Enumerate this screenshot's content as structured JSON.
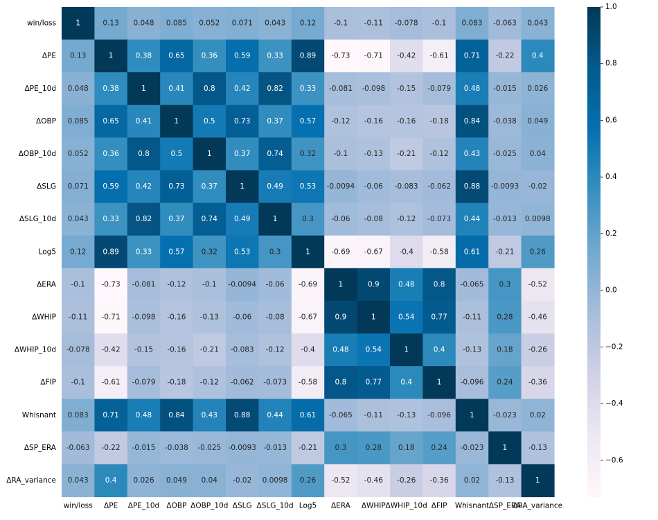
{
  "chart_data": {
    "type": "heatmap",
    "title": "",
    "xlabel": "",
    "ylabel": "",
    "row_labels": [
      "win/loss",
      "ΔPE",
      "ΔPE_10d",
      "ΔOBP",
      "ΔOBP_10d",
      "ΔSLG",
      "ΔSLG_10d",
      "Log5",
      "ΔERA",
      "ΔWHIP",
      "ΔWHIP_10d",
      "ΔFIP",
      "Whisnant",
      "ΔSP_ERA",
      "ΔRA_variance"
    ],
    "column_labels": [
      "win/loss",
      "ΔPE",
      "ΔPE_10d",
      "ΔOBP",
      "ΔOBP_10d",
      "ΔSLG",
      "ΔSLG_10d",
      "Log5",
      "ΔERA",
      "ΔWHIP",
      "ΔWHIP_10d",
      "ΔFIP",
      "Whisnant",
      "ΔSP_ERA",
      "ΔRA_variance"
    ],
    "values": [
      [
        "1",
        "0.13",
        "0.048",
        "0.085",
        "0.052",
        "0.071",
        "0.043",
        "0.12",
        "-0.1",
        "-0.11",
        "-0.078",
        "-0.1",
        "0.083",
        "-0.063",
        "0.043"
      ],
      [
        "0.13",
        "1",
        "0.38",
        "0.65",
        "0.36",
        "0.59",
        "0.33",
        "0.89",
        "-0.73",
        "-0.71",
        "-0.42",
        "-0.61",
        "0.71",
        "-0.22",
        "0.4"
      ],
      [
        "0.048",
        "0.38",
        "1",
        "0.41",
        "0.8",
        "0.42",
        "0.82",
        "0.33",
        "-0.081",
        "-0.098",
        "-0.15",
        "-0.079",
        "0.48",
        "-0.015",
        "0.026"
      ],
      [
        "0.085",
        "0.65",
        "0.41",
        "1",
        "0.5",
        "0.73",
        "0.37",
        "0.57",
        "-0.12",
        "-0.16",
        "-0.16",
        "-0.18",
        "0.84",
        "-0.038",
        "0.049"
      ],
      [
        "0.052",
        "0.36",
        "0.8",
        "0.5",
        "1",
        "0.37",
        "0.74",
        "0.32",
        "-0.1",
        "-0.13",
        "-0.21",
        "-0.12",
        "0.43",
        "-0.025",
        "0.04"
      ],
      [
        "0.071",
        "0.59",
        "0.42",
        "0.73",
        "0.37",
        "1",
        "0.49",
        "0.53",
        "-0.0094",
        "-0.06",
        "-0.083",
        "-0.062",
        "0.88",
        "-0.0093",
        "-0.02"
      ],
      [
        "0.043",
        "0.33",
        "0.82",
        "0.37",
        "0.74",
        "0.49",
        "1",
        "0.3",
        "-0.06",
        "-0.08",
        "-0.12",
        "-0.073",
        "0.44",
        "-0.013",
        "0.0098"
      ],
      [
        "0.12",
        "0.89",
        "0.33",
        "0.57",
        "0.32",
        "0.53",
        "0.3",
        "1",
        "-0.69",
        "-0.67",
        "-0.4",
        "-0.58",
        "0.61",
        "-0.21",
        "0.26"
      ],
      [
        "-0.1",
        "-0.73",
        "-0.081",
        "-0.12",
        "-0.1",
        "-0.0094",
        "-0.06",
        "-0.69",
        "1",
        "0.9",
        "0.48",
        "0.8",
        "-0.065",
        "0.3",
        "-0.52"
      ],
      [
        "-0.11",
        "-0.71",
        "-0.098",
        "-0.16",
        "-0.13",
        "-0.06",
        "-0.08",
        "-0.67",
        "0.9",
        "1",
        "0.54",
        "0.77",
        "-0.11",
        "0.28",
        "-0.46"
      ],
      [
        "-0.078",
        "-0.42",
        "-0.15",
        "-0.16",
        "-0.21",
        "-0.083",
        "-0.12",
        "-0.4",
        "0.48",
        "0.54",
        "1",
        "0.4",
        "-0.13",
        "0.18",
        "-0.26"
      ],
      [
        "-0.1",
        "-0.61",
        "-0.079",
        "-0.18",
        "-0.12",
        "-0.062",
        "-0.073",
        "-0.58",
        "0.8",
        "0.77",
        "0.4",
        "1",
        "-0.096",
        "0.24",
        "-0.36"
      ],
      [
        "0.083",
        "0.71",
        "0.48",
        "0.84",
        "0.43",
        "0.88",
        "0.44",
        "0.61",
        "-0.065",
        "-0.11",
        "-0.13",
        "-0.096",
        "1",
        "-0.023",
        "0.02"
      ],
      [
        "-0.063",
        "-0.22",
        "-0.015",
        "-0.038",
        "-0.025",
        "-0.0093",
        "-0.013",
        "-0.21",
        "0.3",
        "0.28",
        "0.18",
        "0.24",
        "-0.023",
        "1",
        "-0.13"
      ],
      [
        "0.043",
        "0.4",
        "0.026",
        "0.049",
        "0.04",
        "-0.02",
        "0.0098",
        "0.26",
        "-0.52",
        "-0.46",
        "-0.26",
        "-0.36",
        "0.02",
        "-0.13",
        "1"
      ]
    ],
    "colormap": "PuBu",
    "color_range": [
      -0.73,
      1.0
    ],
    "colorbar_ticks": [
      "1.0",
      "0.8",
      "0.6",
      "0.4",
      "0.2",
      "0.0",
      "−0.2",
      "−0.4",
      "−0.6"
    ],
    "colorbar_tick_values": [
      1.0,
      0.8,
      0.6,
      0.4,
      0.2,
      0.0,
      -0.2,
      -0.4,
      -0.6
    ],
    "annotation_dark_text_color": "#262626",
    "annotation_light_text_color": "#ffffff",
    "colormap_stops": [
      "#fff7fb",
      "#ece7f2",
      "#d0d1e6",
      "#a6bddb",
      "#74a9cf",
      "#3690c0",
      "#0570b0",
      "#045a8d",
      "#023858"
    ]
  }
}
